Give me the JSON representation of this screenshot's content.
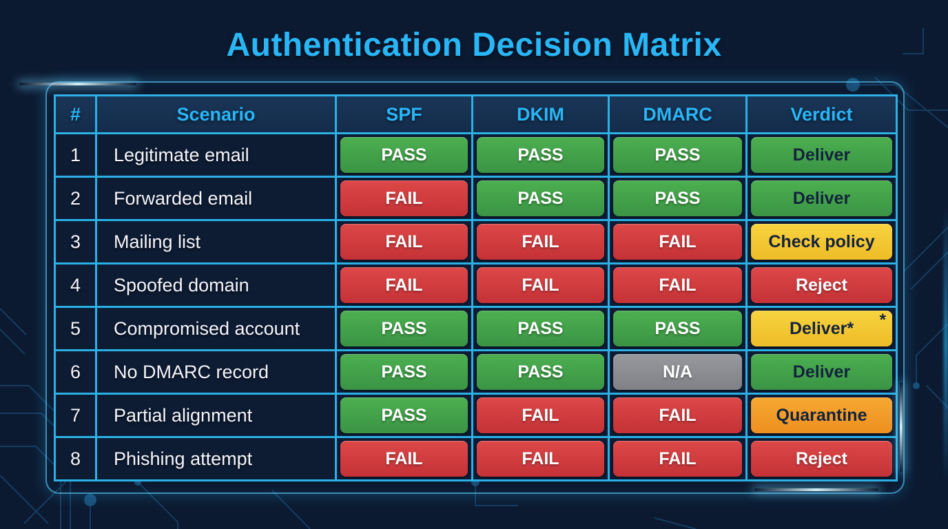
{
  "colors": {
    "background": "#0c1a31",
    "accent": "#29b6f6",
    "table_border": "#2bb1e6",
    "header_bg": "#173050",
    "cell_bg": "#0d1b33",
    "pass_green": "#43a047",
    "fail_red": "#d43a3f",
    "na_gray": "#8f9196",
    "warn_yellow": "#f2c733",
    "quarantine_orange": "#f39c2b",
    "text_light": "#ffffff",
    "text_dark": "#13233c"
  },
  "chart_data": {
    "type": "table",
    "title": "Authentication Decision Matrix",
    "columns": [
      "#",
      "Scenario",
      "SPF",
      "DKIM",
      "DMARC",
      "Verdict"
    ],
    "rows": [
      {
        "num": "1",
        "scenario": "Legitimate email",
        "spf": {
          "label": "PASS",
          "variant": "green",
          "text_color": "light"
        },
        "dkim": {
          "label": "PASS",
          "variant": "green",
          "text_color": "light"
        },
        "dmarc": {
          "label": "PASS",
          "variant": "green",
          "text_color": "light"
        },
        "verdict": {
          "label": "Deliver",
          "variant": "green",
          "text_color": "dark"
        }
      },
      {
        "num": "2",
        "scenario": "Forwarded email",
        "spf": {
          "label": "FAIL",
          "variant": "red",
          "text_color": "light"
        },
        "dkim": {
          "label": "PASS",
          "variant": "green",
          "text_color": "light"
        },
        "dmarc": {
          "label": "PASS",
          "variant": "green",
          "text_color": "light"
        },
        "verdict": {
          "label": "Deliver",
          "variant": "green",
          "text_color": "dark"
        }
      },
      {
        "num": "3",
        "scenario": "Mailing list",
        "spf": {
          "label": "FAIL",
          "variant": "red",
          "text_color": "light"
        },
        "dkim": {
          "label": "FAIL",
          "variant": "red",
          "text_color": "light"
        },
        "dmarc": {
          "label": "FAIL",
          "variant": "red",
          "text_color": "light"
        },
        "verdict": {
          "label": "Check policy",
          "variant": "yellow",
          "text_color": "dark"
        }
      },
      {
        "num": "4",
        "scenario": "Spoofed domain",
        "spf": {
          "label": "FAIL",
          "variant": "red",
          "text_color": "light"
        },
        "dkim": {
          "label": "FAIL",
          "variant": "red",
          "text_color": "light"
        },
        "dmarc": {
          "label": "FAIL",
          "variant": "red",
          "text_color": "light"
        },
        "verdict": {
          "label": "Reject",
          "variant": "red",
          "text_color": "light"
        }
      },
      {
        "num": "5",
        "scenario": "Compromised account",
        "spf": {
          "label": "PASS",
          "variant": "green",
          "text_color": "light"
        },
        "dkim": {
          "label": "PASS",
          "variant": "green",
          "text_color": "light"
        },
        "dmarc": {
          "label": "PASS",
          "variant": "green",
          "text_color": "light"
        },
        "verdict": {
          "label": "Deliver*",
          "variant": "yellow",
          "text_color": "dark",
          "corner_mark": "*"
        }
      },
      {
        "num": "6",
        "scenario": "No DMARC record",
        "spf": {
          "label": "PASS",
          "variant": "green",
          "text_color": "light"
        },
        "dkim": {
          "label": "PASS",
          "variant": "green",
          "text_color": "light"
        },
        "dmarc": {
          "label": "N/A",
          "variant": "gray",
          "text_color": "light"
        },
        "verdict": {
          "label": "Deliver",
          "variant": "green",
          "text_color": "dark"
        }
      },
      {
        "num": "7",
        "scenario": "Partial alignment",
        "spf": {
          "label": "PASS",
          "variant": "green",
          "text_color": "light"
        },
        "dkim": {
          "label": "FAIL",
          "variant": "red",
          "text_color": "light"
        },
        "dmarc": {
          "label": "FAIL",
          "variant": "red",
          "text_color": "light"
        },
        "verdict": {
          "label": "Quarantine",
          "variant": "orange",
          "text_color": "dark"
        }
      },
      {
        "num": "8",
        "scenario": "Phishing attempt",
        "spf": {
          "label": "FAIL",
          "variant": "red",
          "text_color": "light"
        },
        "dkim": {
          "label": "FAIL",
          "variant": "red",
          "text_color": "light"
        },
        "dmarc": {
          "label": "FAIL",
          "variant": "red",
          "text_color": "light"
        },
        "verdict": {
          "label": "Reject",
          "variant": "red",
          "text_color": "light"
        }
      }
    ]
  }
}
